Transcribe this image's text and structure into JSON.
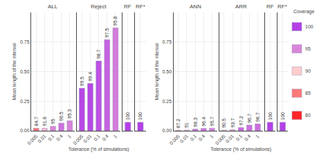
{
  "chart_data": [
    {
      "type": "bar",
      "title": "ALL",
      "categories": [
        "0.005",
        "0.01",
        "0.1",
        "0.4",
        "1"
      ],
      "values": [
        0.022,
        0.022,
        0.038,
        0.065,
        0.085
      ],
      "coverages": [
        84.7,
        91.6,
        95.0,
        96.5,
        95.3
      ],
      "coverage_labels": [
        "84.7",
        "91.6",
        "95",
        "96.5",
        "95.3"
      ],
      "ylabel": "Mean length of the interval",
      "ylim": [
        0,
        1.0
      ],
      "yticks": [
        {
          "value": 0.0,
          "label": "0.00"
        },
        {
          "value": 0.25,
          "label": "0.25"
        },
        {
          "value": 0.5,
          "label": "0.50"
        },
        {
          "value": 0.75,
          "label": "0.75"
        }
      ],
      "grid": true
    },
    {
      "type": "bar",
      "title": "Reject",
      "categories": [
        "0.005",
        "0.01",
        "0.1",
        "0.4",
        "1"
      ],
      "values": [
        0.36,
        0.4,
        0.59,
        0.77,
        0.87
      ],
      "coverages": [
        99.5,
        99.4,
        98.7,
        97.5,
        95.8
      ],
      "coverage_labels": [
        "99.5",
        "99.4",
        "98.7",
        "97.5",
        "95.8"
      ],
      "xlabel": "Tolerance (% of simulations)",
      "ylim": [
        0,
        1.0
      ],
      "yticks": [
        {
          "value": 0.0,
          "label": "0.00"
        },
        {
          "value": 0.25,
          "label": "0.25"
        },
        {
          "value": 0.5,
          "label": "0.50"
        },
        {
          "value": 0.75,
          "label": "0.75"
        }
      ],
      "grid": true,
      "tick_labels": "x"
    },
    {
      "type": "bar",
      "title": "RF",
      "categories": [
        null
      ],
      "values": [
        0.072
      ],
      "coverages": [
        100
      ],
      "coverage_labels": [
        "100"
      ],
      "ylim": [
        0,
        1.0
      ],
      "yticks": [
        {
          "value": 0.0,
          "label": "0.00"
        },
        {
          "value": 0.25,
          "label": "0.25"
        },
        {
          "value": 0.5,
          "label": "0.50"
        },
        {
          "value": 0.75,
          "label": "0.75"
        }
      ],
      "grid": true,
      "tick_labels": false
    },
    {
      "type": "bar",
      "title": "RF*",
      "categories": [
        null
      ],
      "values": [
        0.072
      ],
      "coverages": [
        100
      ],
      "coverage_labels": [
        "100"
      ],
      "ylim": [
        0,
        1.0
      ],
      "yticks": [
        {
          "value": 0.0,
          "label": "0.00"
        },
        {
          "value": 0.25,
          "label": "0.25"
        },
        {
          "value": 0.5,
          "label": "0.50"
        },
        {
          "value": 0.75,
          "label": "0.75"
        }
      ],
      "grid": true,
      "tick_labels": false
    },
    {
      "type": "bar",
      "title": "ANN",
      "categories": [
        "0.005",
        "0.01",
        "0.1",
        "0.4",
        "1"
      ],
      "values": [
        0.005,
        0.007,
        0.015,
        0.02,
        0.022
      ],
      "coverages": [
        87.2,
        91.0,
        96.3,
        96.4,
        95.7
      ],
      "coverage_labels": [
        "87.2",
        "91",
        "96.3",
        "96.4",
        "95.7"
      ],
      "ylabel": "Mean length of the interval",
      "ylim": [
        0,
        1.0
      ],
      "yticks": [
        {
          "value": 0.0,
          "label": "0.00"
        },
        {
          "value": 0.25,
          "label": "0.25"
        },
        {
          "value": 0.5,
          "label": "0.50"
        },
        {
          "value": 0.75,
          "label": "0.75"
        }
      ],
      "grid": true
    },
    {
      "type": "bar",
      "title": "ARR",
      "categories": [
        "0.005",
        "0.01",
        "0.1",
        "0.4",
        "1"
      ],
      "values": [
        0.007,
        0.01,
        0.028,
        0.048,
        0.058
      ],
      "coverages": [
        90.5,
        93.7,
        97.2,
        96.7,
        96.7
      ],
      "coverage_labels": [
        "90.5",
        "93.7",
        "97.2",
        "96.7",
        "96.7"
      ],
      "xlabel": "Tolerance (% of simulations)",
      "ylim": [
        0,
        1.0
      ],
      "yticks": [
        {
          "value": 0.0,
          "label": "0.00"
        },
        {
          "value": 0.25,
          "label": "0.25"
        },
        {
          "value": 0.5,
          "label": "0.50"
        },
        {
          "value": 0.75,
          "label": "0.75"
        }
      ],
      "grid": true,
      "tick_labels": "x"
    },
    {
      "type": "bar",
      "title": "RF",
      "categories": [
        null
      ],
      "values": [
        0.072
      ],
      "coverages": [
        100
      ],
      "coverage_labels": [
        "100"
      ],
      "ylim": [
        0,
        1.0
      ],
      "yticks": [
        {
          "value": 0.0,
          "label": "0.00"
        },
        {
          "value": 0.25,
          "label": "0.25"
        },
        {
          "value": 0.5,
          "label": "0.50"
        },
        {
          "value": 0.75,
          "label": "0.75"
        }
      ],
      "grid": true,
      "tick_labels": false
    },
    {
      "type": "bar",
      "title": "RF*",
      "categories": [
        null
      ],
      "values": [
        0.072
      ],
      "coverages": [
        100
      ],
      "coverage_labels": [
        "100"
      ],
      "ylim": [
        0,
        1.0
      ],
      "yticks": [
        {
          "value": 0.0,
          "label": "0.00"
        },
        {
          "value": 0.25,
          "label": "0.25"
        },
        {
          "value": 0.5,
          "label": "0.50"
        },
        {
          "value": 0.75,
          "label": "0.75"
        }
      ],
      "grid": true,
      "tick_labels": false,
      "coverage_legend": {
        "title": "Coverage",
        "range": [
          80,
          100
        ],
        "ticks": [
          100,
          95,
          90,
          85,
          80
        ]
      }
    }
  ]
}
